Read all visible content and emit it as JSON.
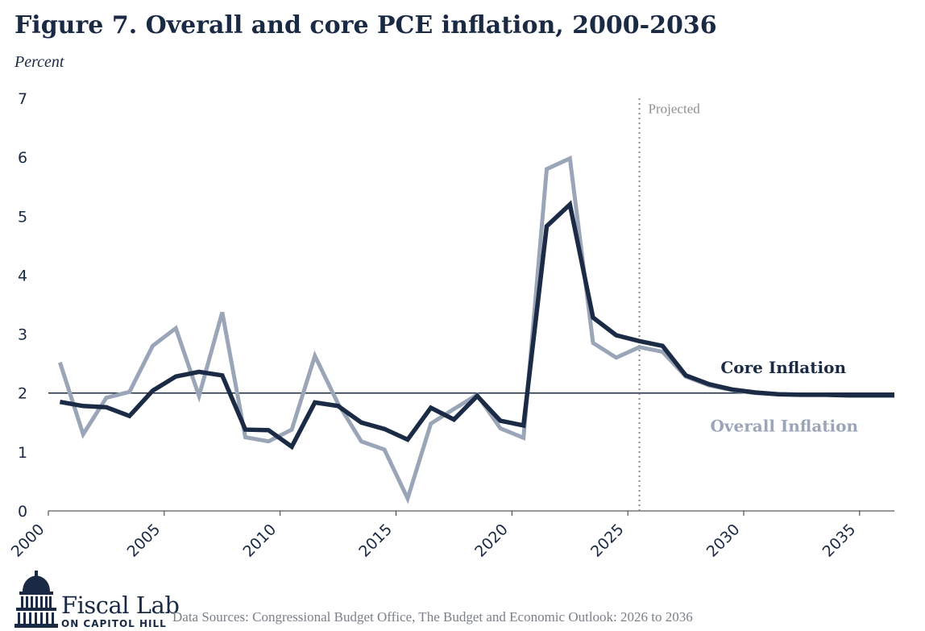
{
  "header": {
    "title": "Figure 7. Overall and core PCE inflation, 2000-2036",
    "y_unit": "Percent"
  },
  "chart_data": {
    "type": "line",
    "title": "Figure 7. Overall and core PCE inflation, 2000-2036",
    "ylabel": "Percent",
    "xlabel": "",
    "ylim": [
      0,
      7
    ],
    "xlim": [
      2000,
      2036.5
    ],
    "y_ticks": [
      "0",
      "1",
      "2",
      "3",
      "4",
      "5",
      "6",
      "7"
    ],
    "x_ticks": [
      "2000",
      "2005",
      "2010",
      "2015",
      "2020",
      "2025",
      "2030",
      "2035"
    ],
    "reference_line": 2,
    "projection_start": 2025.5,
    "projection_label": "Projected",
    "grid": false,
    "x": [
      2000.5,
      2001.5,
      2002.5,
      2003.5,
      2004.5,
      2005.5,
      2006.5,
      2007.5,
      2008.5,
      2009.5,
      2010.5,
      2011.5,
      2012.5,
      2013.5,
      2014.5,
      2015.5,
      2016.5,
      2017.5,
      2018.5,
      2019.5,
      2020.5,
      2021.5,
      2022.5,
      2023.5,
      2024.5,
      2025.5,
      2026.5,
      2027.5,
      2028.5,
      2029.5,
      2030.5,
      2031.5,
      2032.5,
      2033.5,
      2034.5,
      2035.5,
      2036.5
    ],
    "series": [
      {
        "name": "Overall Inflation",
        "color": "#9aa5b8",
        "values": [
          2.52,
          1.3,
          1.92,
          2.02,
          2.8,
          3.1,
          1.95,
          3.37,
          1.25,
          1.18,
          1.38,
          2.63,
          1.82,
          1.18,
          1.04,
          0.21,
          1.48,
          1.73,
          1.97,
          1.4,
          1.24,
          5.8,
          5.98,
          2.85,
          2.6,
          2.78,
          2.7,
          2.28,
          2.13,
          2.05,
          2.0,
          1.98,
          1.97,
          1.97,
          1.96,
          1.96,
          1.96
        ]
      },
      {
        "name": "Core Inflation",
        "color": "#1c2b45",
        "values": [
          1.85,
          1.78,
          1.76,
          1.61,
          2.04,
          2.28,
          2.36,
          2.3,
          1.38,
          1.37,
          1.09,
          1.84,
          1.78,
          1.5,
          1.39,
          1.21,
          1.75,
          1.55,
          1.95,
          1.53,
          1.45,
          4.83,
          5.2,
          3.28,
          2.98,
          2.88,
          2.8,
          2.3,
          2.15,
          2.06,
          2.01,
          1.98,
          1.97,
          1.97,
          1.96,
          1.96,
          1.96
        ]
      }
    ],
    "legend_placement": "inline-right"
  },
  "footer": {
    "logo_name": "Fiscal Lab",
    "logo_sub": "ON CAPITOL HILL",
    "source": "Data Sources: Congressional Budget Office, The Budget and Economic Outlook: 2026 to 2036"
  },
  "icons": {
    "logo": "capitol-dome-icon"
  },
  "colors": {
    "title": "#1a2a44",
    "core": "#1c2b45",
    "overall": "#9aa5b8"
  }
}
